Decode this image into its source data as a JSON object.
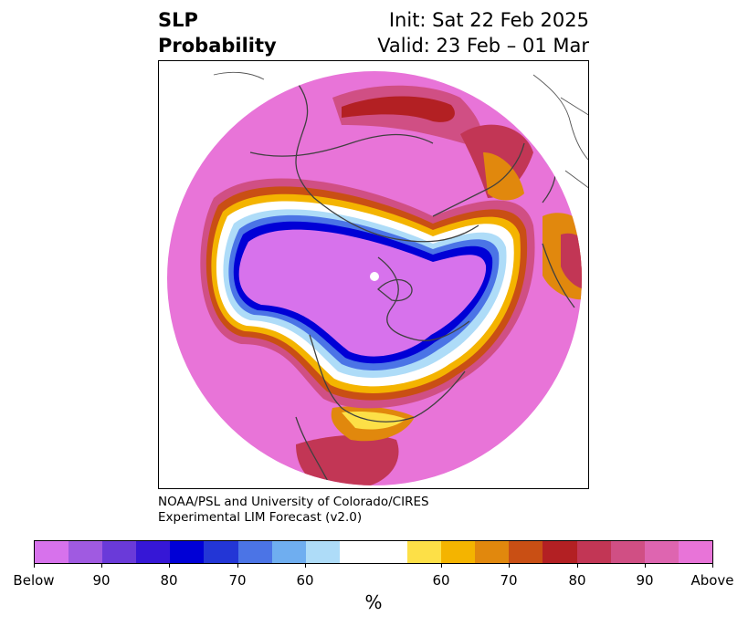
{
  "title": {
    "left_line1": "SLP",
    "left_line2": "Probability",
    "right_line1": "Init: Sat 22 Feb 2025",
    "right_line2": "Valid: 23 Feb – 01 Mar"
  },
  "credit": {
    "line1": "NOAA/PSL and University of Colorado/CIRES",
    "line2": "Experimental LIM Forecast (v2.0)"
  },
  "map": {
    "projection": "north polar stereographic",
    "features": [
      "Arctic low-pressure anomaly (Below) centered over pole/Canada",
      "Above-normal probability ring over mid-latitudes",
      "Strong above over northern Russia and Europe"
    ]
  },
  "colorbar": {
    "colors": [
      "#d772ec",
      "#a05ae1",
      "#6a3ad9",
      "#3617d6",
      "#0000d6",
      "#2336d6",
      "#4b74e6",
      "#6faef0",
      "#aedcf8",
      "#ffffff",
      "#ffffff",
      "#fde047",
      "#f4b400",
      "#e1880d",
      "#c94f14",
      "#b32023",
      "#c23655",
      "#d04f84",
      "#de65b0",
      "#e874d8"
    ],
    "tick_labels": [
      "Below",
      "90",
      "80",
      "70",
      "60",
      "60",
      "70",
      "80",
      "90",
      "Above"
    ],
    "unit_label": "%"
  }
}
